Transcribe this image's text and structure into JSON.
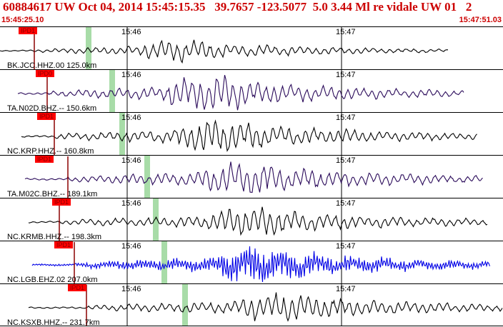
{
  "header": {
    "title": "60884617 UW Oct 04, 2014 15:45:15.35   39.7657 -123.5077  5.0 3.44 Ml re vidale UW 01   2",
    "start_time": "15:45:25.10",
    "end_time": "15:47:51.03"
  },
  "colors": {
    "header_text": "#cc0000",
    "pick_box": "#ff0000",
    "pick_line": "#8b0000",
    "s_window": "#a8dca8",
    "panel_border": "#000000",
    "trace_default": "#000000"
  },
  "time_marks": {
    "first": "15:46",
    "second": "15:47"
  },
  "stations": [
    {
      "label": "BK.JCC.HHZ.00 125.0km",
      "pick": "IPD1",
      "color": "#000000",
      "amplitude": 0.5
    },
    {
      "label": "TA.N02D.BHZ.-- 150.6km",
      "pick": "IPD0",
      "color": "#2a0a5a",
      "amplitude": 0.8
    },
    {
      "label": "NC.KRP.HHZ.-- 160.8km",
      "pick": "IPD1",
      "color": "#000000",
      "amplitude": 0.8
    },
    {
      "label": "TA.M02C.BHZ.-- 189.1km",
      "pick": "IPD1",
      "color": "#2a0a5a",
      "amplitude": 0.8
    },
    {
      "label": "NC.KRMB.HHZ.-- 198.3km",
      "pick": "IPD1",
      "color": "#000000",
      "amplitude": 0.7
    },
    {
      "label": "NC.LGB.EHZ.02 207.0km",
      "pick": "IPD1",
      "color": "#0000e6",
      "amplitude": 0.9
    },
    {
      "label": "NC.KSXB.HHZ.-- 231.7km",
      "pick": "IPD1",
      "color": "#000000",
      "amplitude": 0.7
    }
  ]
}
